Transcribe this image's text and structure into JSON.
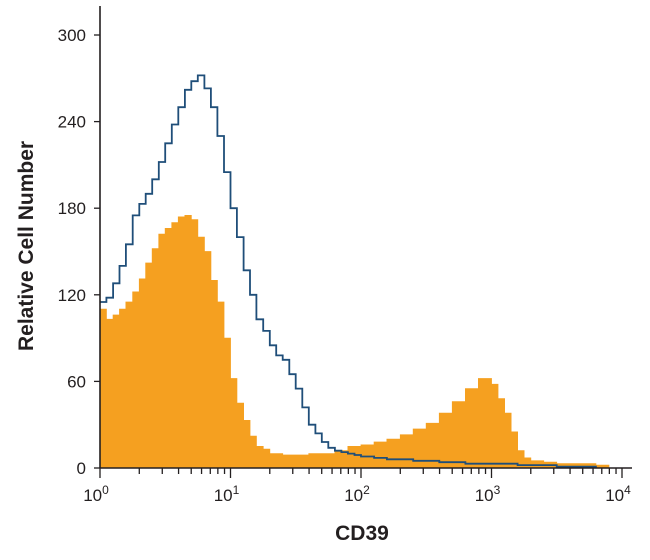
{
  "chart_data": {
    "type": "area",
    "xlabel": "CD39",
    "ylabel": "Relative Cell Number",
    "x_scale": "log",
    "xlim": [
      1,
      10000
    ],
    "ylim": [
      0,
      320
    ],
    "x_ticks": [
      {
        "value": 1,
        "base": "10",
        "exp": "0"
      },
      {
        "value": 10,
        "base": "10",
        "exp": "1"
      },
      {
        "value": 100,
        "base": "10",
        "exp": "2"
      },
      {
        "value": 1000,
        "base": "10",
        "exp": "3"
      },
      {
        "value": 10000,
        "base": "10",
        "exp": "4"
      }
    ],
    "y_ticks": [
      0,
      60,
      120,
      180,
      240,
      300
    ],
    "grid": false,
    "legend": "none",
    "series": [
      {
        "style": "filled",
        "color": "#f5a020",
        "x": [
          1.0,
          1.12,
          1.26,
          1.41,
          1.58,
          1.78,
          2.0,
          2.24,
          2.51,
          2.82,
          3.16,
          3.55,
          3.98,
          4.47,
          5.01,
          5.62,
          6.31,
          7.08,
          7.94,
          8.91,
          10.0,
          11.2,
          12.6,
          14.1,
          15.8,
          17.8,
          20.0,
          25.1,
          31.6,
          39.8,
          50.1,
          63.1,
          79.4,
          100,
          126,
          158,
          200,
          251,
          316,
          398,
          501,
          631,
          794,
          1000,
          1122,
          1259,
          1413,
          1585,
          1778,
          2000,
          2512,
          3162,
          3981,
          5012,
          6310,
          7943
        ],
        "y": [
          110,
          103,
          106,
          110,
          115,
          122,
          131,
          142,
          152,
          162,
          166,
          170,
          174,
          175,
          172,
          160,
          150,
          130,
          115,
          90,
          62,
          45,
          33,
          22,
          15,
          13,
          10,
          9,
          9,
          10,
          10,
          12,
          15,
          16,
          18,
          20,
          23,
          27,
          31,
          38,
          46,
          55,
          62,
          58,
          48,
          38,
          25,
          12,
          7,
          5,
          4,
          3,
          3,
          3,
          2,
          1
        ]
      },
      {
        "style": "line",
        "color": "#1f4e79",
        "x": [
          1.0,
          1.12,
          1.26,
          1.41,
          1.58,
          1.78,
          2.0,
          2.24,
          2.51,
          2.82,
          3.16,
          3.55,
          3.98,
          4.47,
          5.01,
          5.62,
          6.31,
          7.08,
          7.94,
          8.91,
          10.0,
          11.2,
          12.6,
          14.1,
          15.8,
          17.8,
          20.0,
          22.4,
          25.1,
          28.2,
          31.6,
          35.5,
          39.8,
          44.7,
          50.1,
          56.2,
          63.1,
          70.8,
          79.4,
          89.1,
          100,
          126,
          158,
          200,
          251,
          316,
          398,
          501,
          631,
          794,
          1000,
          1259,
          1585,
          2000,
          2512,
          3162,
          3981,
          5012,
          6310
        ],
        "y": [
          115,
          118,
          128,
          140,
          155,
          175,
          183,
          190,
          200,
          212,
          225,
          238,
          250,
          262,
          268,
          272,
          263,
          250,
          230,
          205,
          180,
          160,
          137,
          120,
          103,
          95,
          85,
          78,
          75,
          65,
          55,
          42,
          30,
          24,
          18,
          14,
          12,
          11,
          10,
          9,
          8,
          7,
          6,
          6,
          5,
          5,
          4,
          4,
          3,
          3,
          3,
          3,
          2,
          2,
          2,
          1,
          1,
          1,
          0
        ]
      }
    ]
  }
}
